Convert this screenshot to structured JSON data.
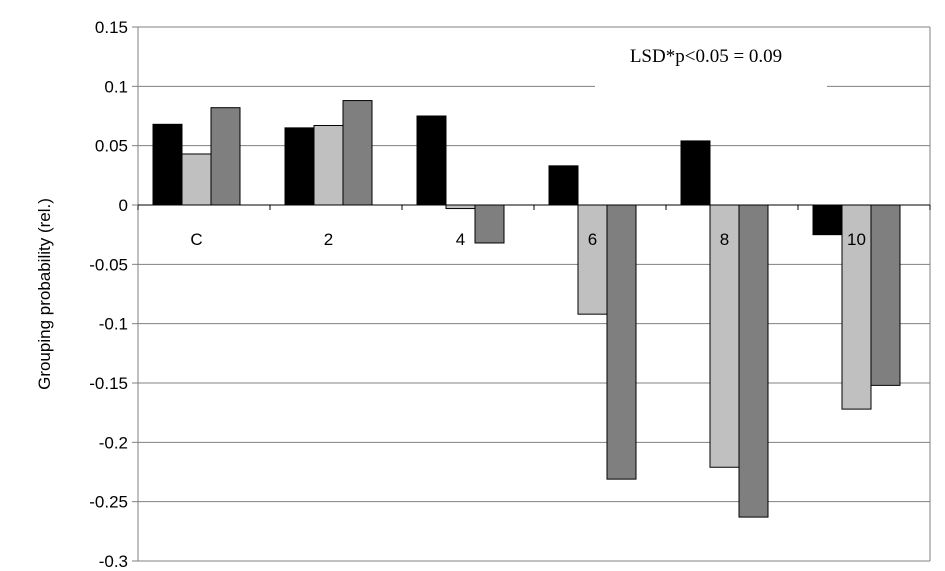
{
  "chart_data": {
    "type": "bar",
    "categories": [
      "C",
      "2",
      "4",
      "6",
      "8",
      "10"
    ],
    "series": [
      {
        "values": [
          0.068,
          0.065,
          0.075,
          0.033,
          0.054,
          -0.025
        ],
        "color": "#000000"
      },
      {
        "values": [
          0.043,
          0.067,
          -0.003,
          -0.092,
          -0.221,
          -0.172
        ],
        "color": "#c0c0c0"
      },
      {
        "values": [
          0.082,
          0.088,
          -0.032,
          -0.231,
          -0.263,
          -0.152
        ],
        "color": "#7f7f7f"
      }
    ],
    "ylabel": "Grouping probability (rel.)",
    "ylim": [
      -0.3,
      0.15
    ],
    "yticks": [
      "0.15",
      "0.1",
      "0.05",
      "0",
      "-0.05",
      "-0.1",
      "-0.15",
      "-0.2",
      "-0.25",
      "-0.3"
    ],
    "annotation": "LSD*p<0.05 = 0.09",
    "grid": true,
    "legend": "none"
  }
}
